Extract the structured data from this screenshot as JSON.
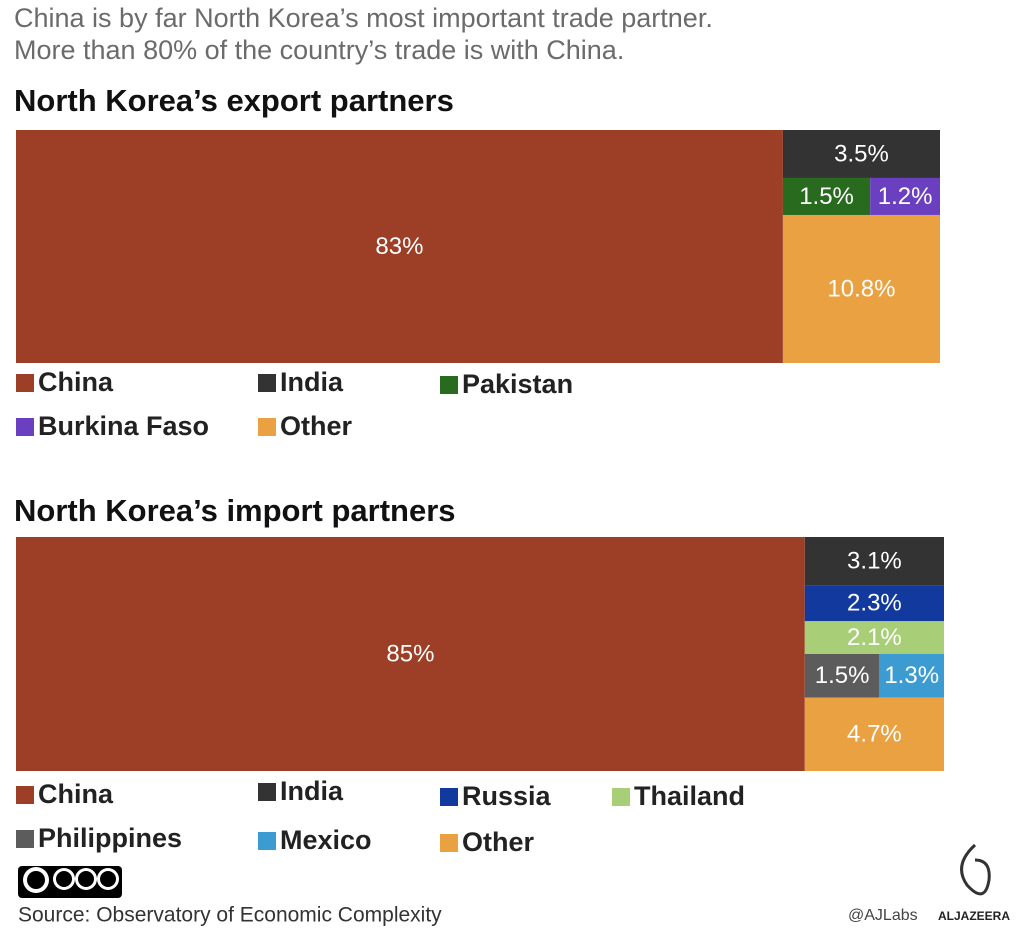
{
  "header": {
    "lines": [
      "China is by far North Korea’s most important trade partner.",
      "More than 80% of the country’s trade is with China."
    ]
  },
  "chart_data": [
    {
      "type": "treemap",
      "title": "North Korea’s export partners",
      "categories": [
        "China",
        "India",
        "Pakistan",
        "Burkina Faso",
        "Other"
      ],
      "values": [
        83,
        3.5,
        1.5,
        1.2,
        10.8
      ],
      "value_labels": [
        "83%",
        "3.5%",
        "1.5%",
        "1.2%",
        "10.8%"
      ],
      "colors": [
        "#9c3f26",
        "#333333",
        "#286b1e",
        "#6a3fc0",
        "#e9a141"
      ]
    },
    {
      "type": "treemap",
      "title": "North Korea’s import partners",
      "categories": [
        "China",
        "India",
        "Russia",
        "Thailand",
        "Philippines",
        "Mexico",
        "Other"
      ],
      "values": [
        85,
        3.1,
        2.3,
        2.1,
        1.5,
        1.3,
        4.7
      ],
      "value_labels": [
        "85%",
        "3.1%",
        "2.3%",
        "2.1%",
        "1.5%",
        "1.3%",
        "4.7%"
      ],
      "colors": [
        "#9c3f26",
        "#333333",
        "#123a9e",
        "#a8cf78",
        "#5c5c5c",
        "#3c9bd0",
        "#e9a141"
      ]
    }
  ],
  "footer": {
    "source": "Source: Observatory of Economic Complexity",
    "credit": "@AJLabs",
    "brand": "ALJAZEERA"
  }
}
